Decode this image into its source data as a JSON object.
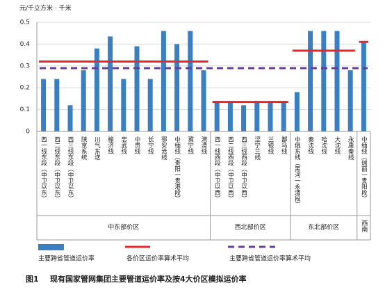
{
  "chart_data": {
    "type": "bar",
    "y_label": "元/千立方米 · 千米",
    "ylim": [
      0,
      0.5
    ],
    "yticks": [
      0,
      0.1,
      0.2,
      0.3,
      0.4,
      0.5
    ],
    "grid": true,
    "bar_name": "主要跨省管道运价率",
    "color": "#3a7fc1",
    "average_name": "各价区运价率算术平均",
    "average_color": "#e8262b",
    "overall_name": "主要跨省管道运价率算术平均",
    "overall_average": 0.29,
    "overall_color": "#6a3d9a",
    "groups": [
      {
        "label": "中东部价区",
        "average": 0.32,
        "categories": [
          "西一线东段（中卫以东）",
          "西二线东段（中卫以东）",
          "西三线东段（中卫以东）",
          "陕京系统",
          "川气东送",
          "榆济线",
          "忠武线",
          "中贵线",
          "长宁线",
          "鄂安沧线",
          "中缅线（贵阳一贵港段）",
          "冀宁线",
          "港清线"
        ],
        "values": [
          0.24,
          0.24,
          0.12,
          0.28,
          0.38,
          0.435,
          0.24,
          0.39,
          0.24,
          0.46,
          0.4,
          0.46,
          0.28
        ]
      },
      {
        "label": "西北部价区",
        "average": 0.135,
        "categories": [
          "西一线西段（中卫以西）",
          "西二线西段（中卫以西）",
          "西三线西段（中卫以西）",
          "涩宁兰线",
          "兰银线",
          "鄯乌线"
        ],
        "values": [
          0.14,
          0.14,
          0.12,
          0.14,
          0.14,
          0.14
        ]
      },
      {
        "label": "东北部价区",
        "average": 0.37,
        "categories": [
          "中俄东线（黑河一永清段）",
          "秦沈线",
          "哈沈线",
          "大沈线",
          "永唐秦线"
        ],
        "values": [
          0.18,
          0.46,
          0.46,
          0.46,
          0.28
        ]
      },
      {
        "label": "西南",
        "average": 0.41,
        "categories": [
          "中缅线（瑞丽一贵阳段）"
        ],
        "values": [
          0.41
        ]
      }
    ]
  },
  "caption": {
    "number": "图1",
    "text": "现有国家管网集团主要管道运价率及按4大价区模拟运价率"
  }
}
